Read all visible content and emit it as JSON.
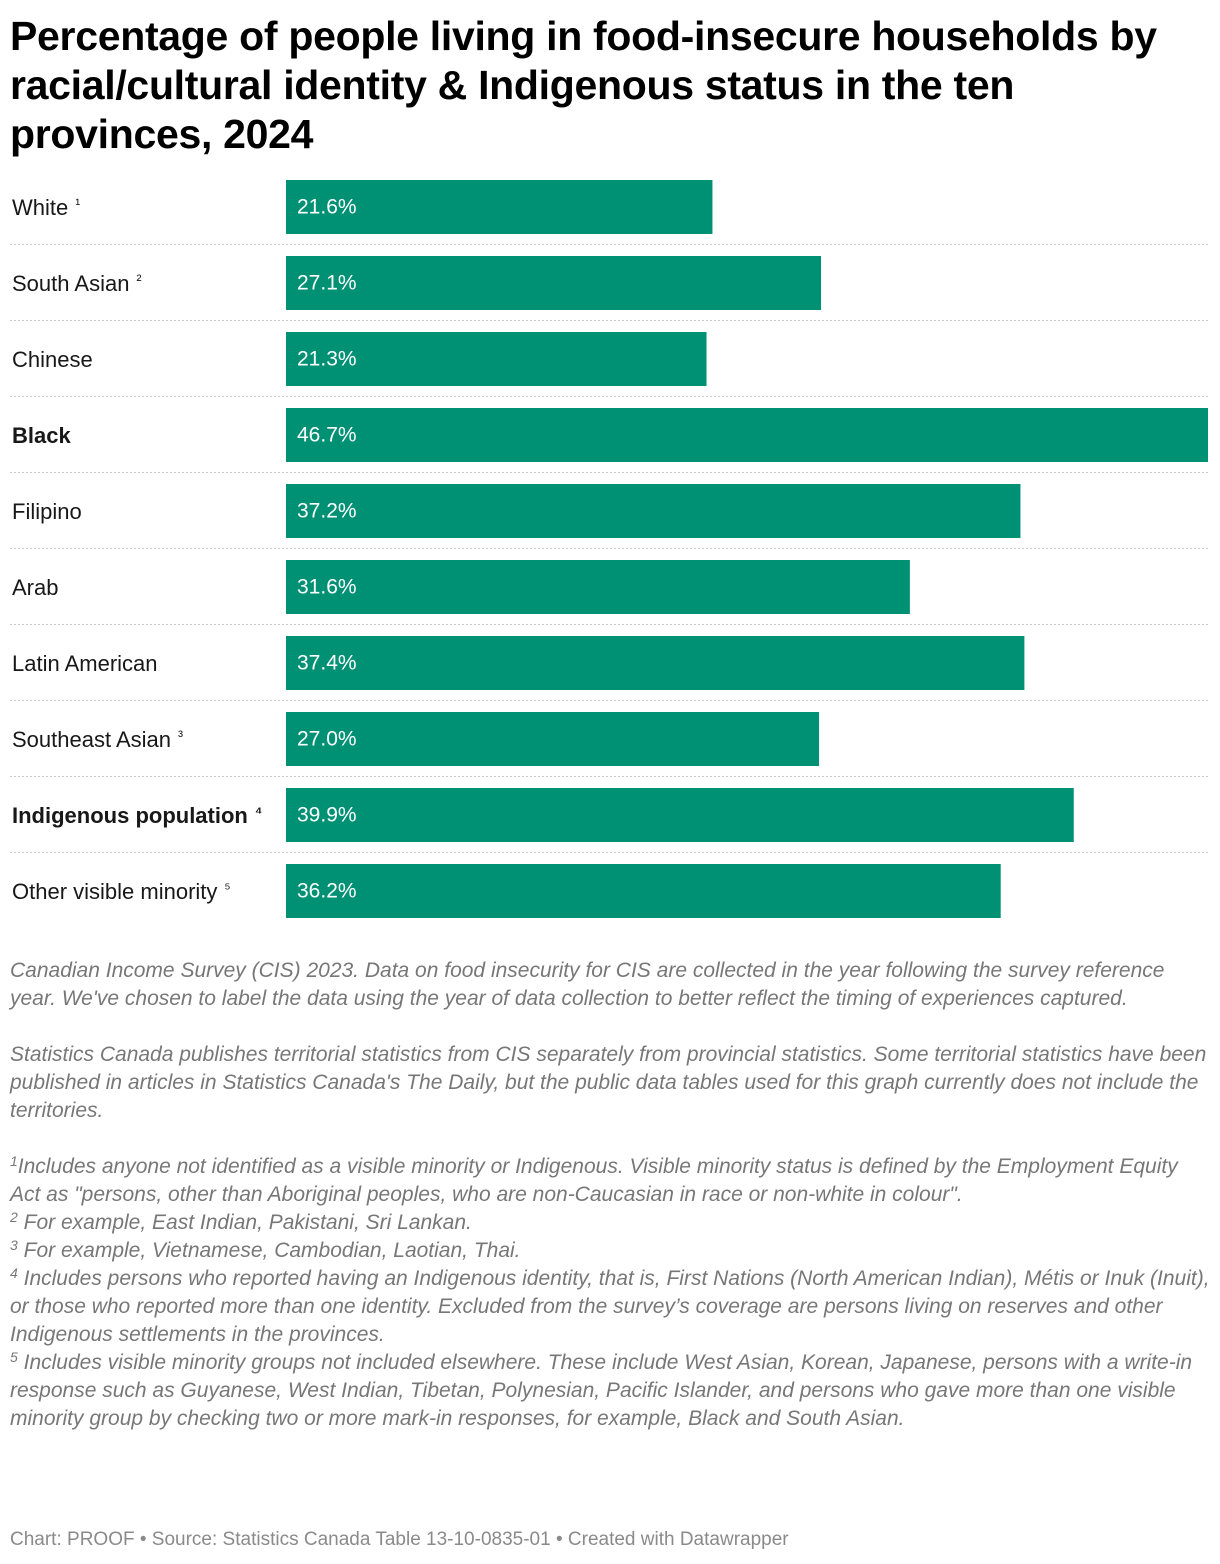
{
  "chart_data": {
    "type": "bar",
    "orientation": "horizontal",
    "title": "Percentage of people living in food-insecure households by racial/cultural identity & Indigenous status in the ten provinces, 2024",
    "categories": [
      {
        "label": "White",
        "note": "¹",
        "bold": false
      },
      {
        "label": "South Asian",
        "note": "²",
        "bold": false
      },
      {
        "label": "Chinese",
        "note": "",
        "bold": false
      },
      {
        "label": "Black",
        "note": "",
        "bold": true
      },
      {
        "label": "Filipino",
        "note": "",
        "bold": false
      },
      {
        "label": "Arab",
        "note": "",
        "bold": false
      },
      {
        "label": "Latin American",
        "note": "",
        "bold": false
      },
      {
        "label": "Southeast Asian",
        "note": "³",
        "bold": false
      },
      {
        "label": "Indigenous population",
        "note": "⁴",
        "bold": true
      },
      {
        "label": "Other visible minority",
        "note": "⁵",
        "bold": false
      }
    ],
    "values": [
      21.6,
      27.1,
      21.3,
      46.7,
      37.2,
      31.6,
      37.4,
      27.0,
      39.9,
      36.2
    ],
    "value_labels": [
      "21.6%",
      "27.1%",
      "21.3%",
      "46.7%",
      "37.2%",
      "31.6%",
      "37.4%",
      "27.0%",
      "39.9%",
      "36.2%"
    ],
    "xlim": [
      0,
      46.7
    ],
    "bar_color": "#009175",
    "label_color": "#ffffff",
    "grid": false,
    "legend": "none"
  },
  "notes": {
    "p1": "Canadian Income Survey (CIS) 2023. Data on food insecurity for CIS are collected in the year following the survey reference year. We've chosen to label the data using the year of data collection to better reflect the timing of experiences captured.",
    "p2": "Statistics Canada publishes territorial statistics from CIS separately from provincial statistics. Some territorial statistics have been published in articles in Statistics Canada's The Daily, but the public data tables used for this graph currently does not include the territories.",
    "footnotes": [
      {
        "num": "1",
        "text": "Includes anyone not identified as a visible minority or Indigenous. Visible minority status is defined by the Employment Equity Act as \"persons, other than Aboriginal peoples, who are non-Caucasian in race or non-white in colour\"."
      },
      {
        "num": "2",
        "text": " For example, East Indian, Pakistani, Sri Lankan."
      },
      {
        "num": "3",
        "text": " For example, Vietnamese, Cambodian, Laotian, Thai."
      },
      {
        "num": "4",
        "text": " Includes persons who reported having an Indigenous identity, that is, First Nations (North American Indian), Métis or Inuk (Inuit), or those who reported more than one identity. Excluded from the survey’s coverage are persons living on reserves and other Indigenous settlements in the provinces."
      },
      {
        "num": "5",
        "text": " Includes visible minority groups not included elsewhere. These include West Asian, Korean, Japanese, persons with a write-in response such as Guyanese, West Indian, Tibetan, Polynesian, Pacific Islander, and persons who gave more than one visible minority group by checking two or more mark-in responses, for example, Black and South Asian."
      }
    ]
  },
  "footer": "Chart: PROOF • Source: Statistics Canada Table 13-10-0835-01 • Created with Datawrapper"
}
